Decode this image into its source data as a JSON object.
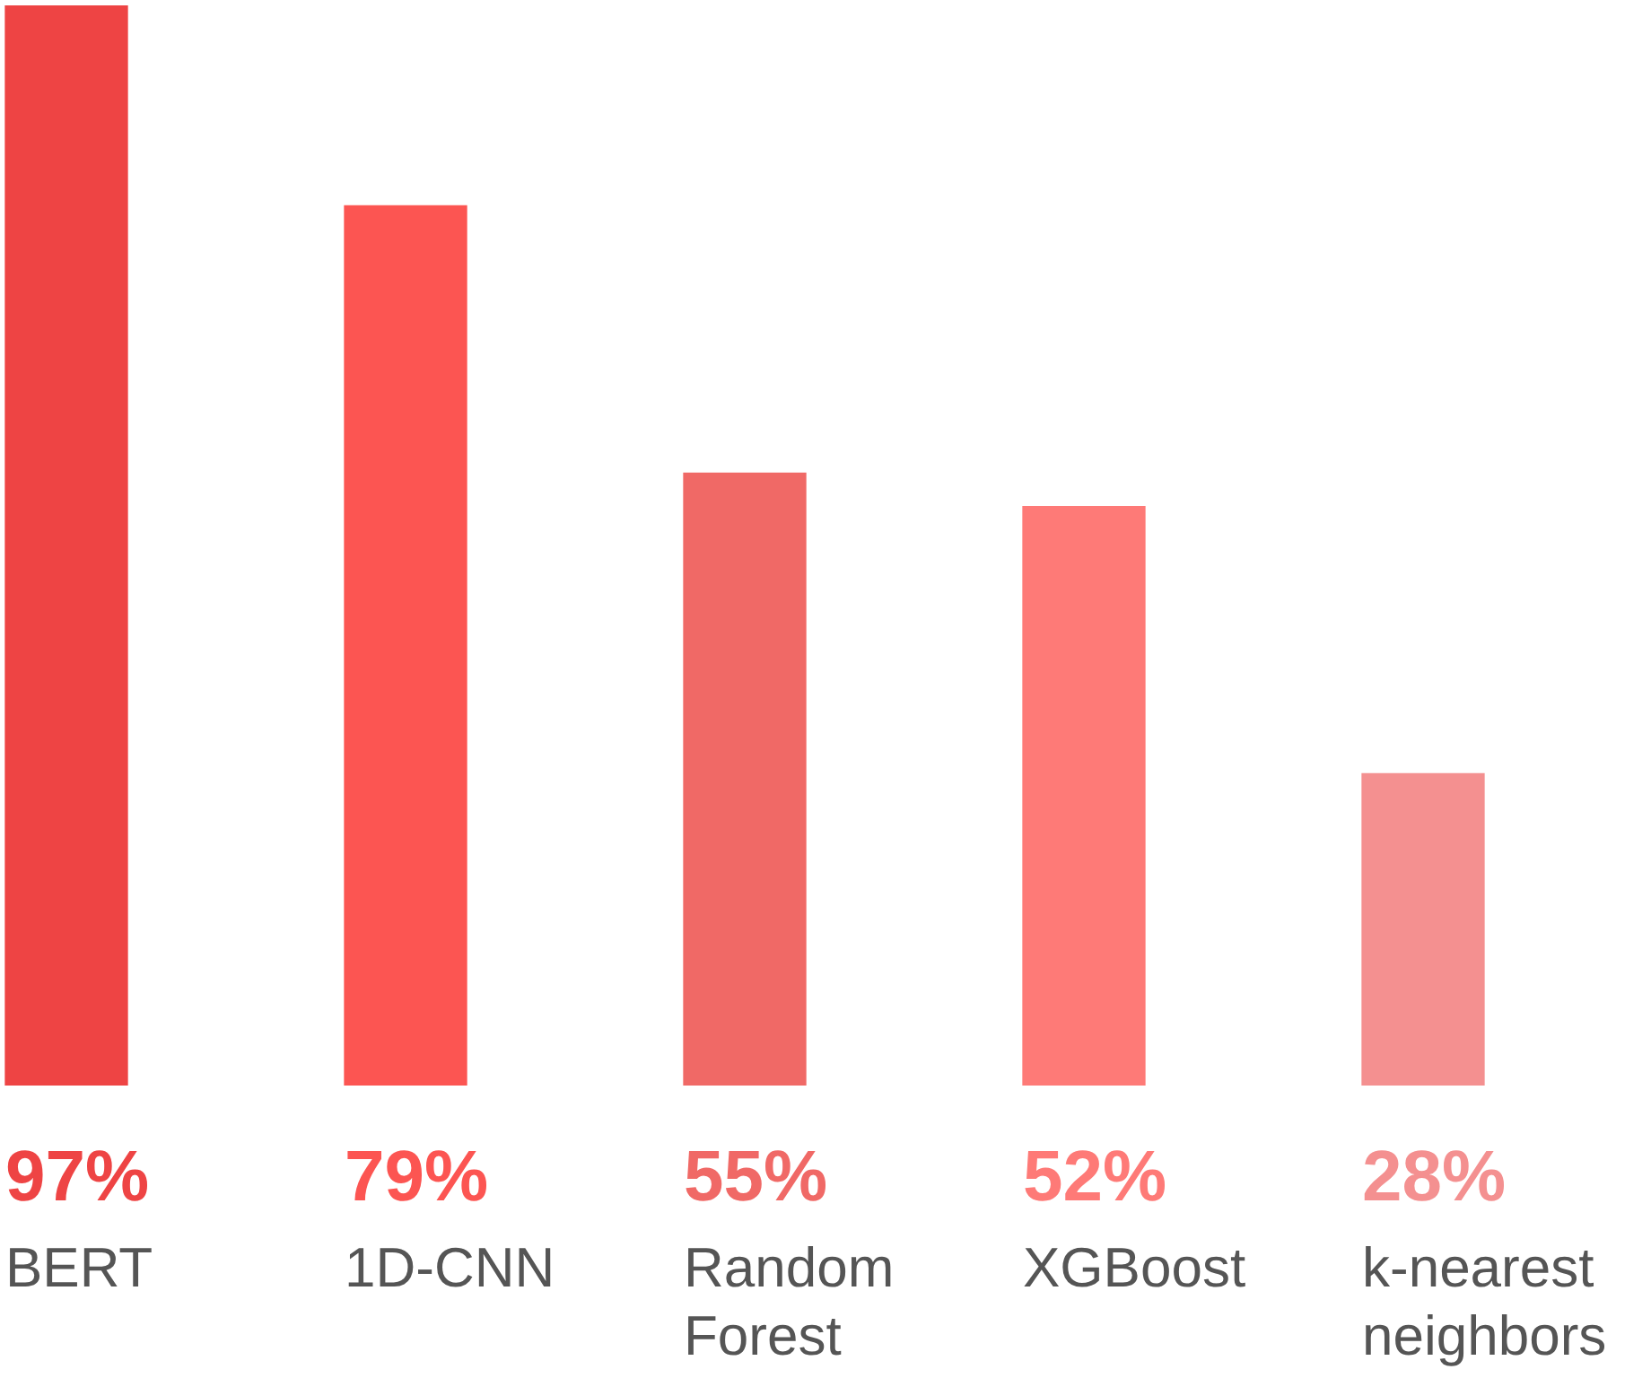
{
  "chart_data": {
    "type": "bar",
    "categories": [
      "BERT",
      "1D-CNN",
      "Random Forest",
      "XGBoost",
      "k-nearest neighbors"
    ],
    "values": [
      97,
      79,
      55,
      52,
      28
    ],
    "colors": [
      "#ee4444",
      "#fc5552",
      "#f06966",
      "#fe7a77",
      "#f49090"
    ],
    "value_labels": [
      "97%",
      "79%",
      "55%",
      "52%",
      "28%"
    ],
    "legend": false
  }
}
